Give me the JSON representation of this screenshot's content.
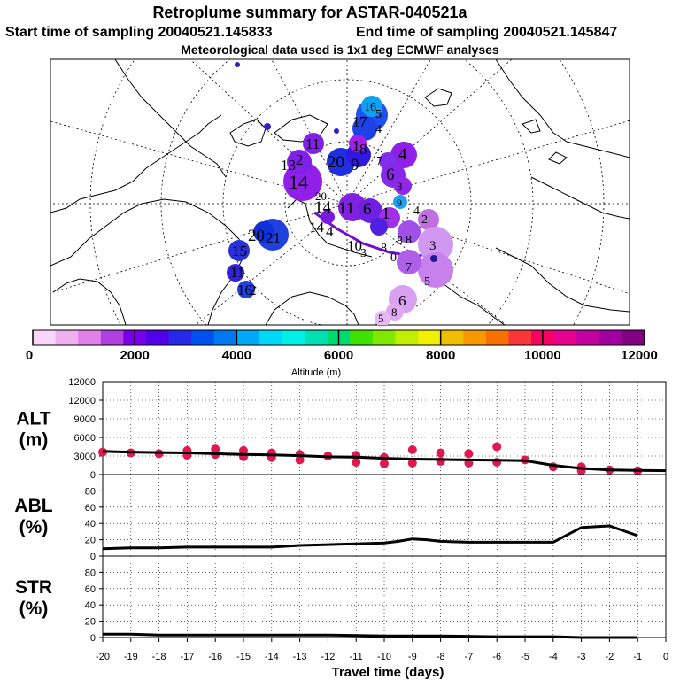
{
  "titles": {
    "line1": "Retroplume summary for ASTAR-040521a",
    "line2a": "Start time of sampling 20040521.145833",
    "line2b": "End time of sampling 20040521.145847",
    "line3": "Meteorological data used is 1x1 deg ECMWF analyses"
  },
  "colorbar": {
    "colors": [
      "#f8d8f8",
      "#f0b0f0",
      "#e080e8",
      "#b040e0",
      "#7800e8",
      "#5000e8",
      "#2828e8",
      "#0050f0",
      "#0078f0",
      "#00a8f8",
      "#00d8f8",
      "#00f0e8",
      "#00e0b0",
      "#00d870",
      "#40e000",
      "#80e800",
      "#c0f000",
      "#f0f000",
      "#f0c000",
      "#f89800",
      "#f87000",
      "#f83838",
      "#f80060",
      "#e80090",
      "#c000a0",
      "#a000a0",
      "#800080"
    ],
    "tick_labels": [
      "0",
      "2000",
      "4000",
      "6000",
      "8000",
      "10000",
      "12000"
    ],
    "label": "Altitude (m)"
  },
  "map": {
    "markers": [
      {
        "lon": 0.42,
        "lat": 0.52,
        "r": 14,
        "c": "#8020e0",
        "label": "10"
      },
      {
        "lon": 0.45,
        "lat": 0.6,
        "r": 13,
        "c": "#6010e8",
        "label": "1"
      }
    ]
  },
  "chart_data": [
    {
      "type": "scatter",
      "panel": "ALT",
      "ylabel": "ALT\n(m)",
      "ylabel_line1": "ALT",
      "ylabel_line2": "(m)",
      "yticks": [
        "0",
        "3000",
        "6000",
        "9000",
        "12000"
      ],
      "ylim": [
        0,
        12000
      ],
      "xlim": [
        -20,
        0
      ],
      "line": {
        "x": [
          -20,
          -19,
          -18,
          -17,
          -16,
          -15,
          -14,
          -13,
          -12,
          -11,
          -10,
          -9,
          -8,
          -7,
          -6,
          -5,
          -4,
          -3,
          -2,
          -1,
          0
        ],
        "y": [
          3000,
          2900,
          2850,
          2800,
          2700,
          2600,
          2550,
          2450,
          2300,
          2250,
          2100,
          2000,
          1950,
          1900,
          1850,
          1800,
          1200,
          800,
          600,
          550,
          500
        ]
      },
      "points": [
        {
          "x": -20,
          "y": 2900
        },
        {
          "x": -19,
          "y": 2800
        },
        {
          "x": -18,
          "y": 2700
        },
        {
          "x": -17,
          "y": 3100
        },
        {
          "x": -17,
          "y": 2500
        },
        {
          "x": -16,
          "y": 3300
        },
        {
          "x": -16,
          "y": 2600
        },
        {
          "x": -15,
          "y": 3100
        },
        {
          "x": -15,
          "y": 2300
        },
        {
          "x": -14,
          "y": 2800
        },
        {
          "x": -14,
          "y": 2200
        },
        {
          "x": -13,
          "y": 2600
        },
        {
          "x": -13,
          "y": 1900
        },
        {
          "x": -12,
          "y": 2400
        },
        {
          "x": -11,
          "y": 2500
        },
        {
          "x": -11,
          "y": 1600
        },
        {
          "x": -10,
          "y": 2200
        },
        {
          "x": -10,
          "y": 1400
        },
        {
          "x": -9,
          "y": 3200
        },
        {
          "x": -9,
          "y": 1500
        },
        {
          "x": -8,
          "y": 2800
        },
        {
          "x": -8,
          "y": 1700
        },
        {
          "x": -7,
          "y": 2700
        },
        {
          "x": -7,
          "y": 1500
        },
        {
          "x": -6,
          "y": 3600
        },
        {
          "x": -6,
          "y": 1600
        },
        {
          "x": -5,
          "y": 1900
        },
        {
          "x": -4,
          "y": 1000
        },
        {
          "x": -3,
          "y": 1000
        },
        {
          "x": -3,
          "y": 500
        },
        {
          "x": -2,
          "y": 600
        },
        {
          "x": -1,
          "y": 500
        }
      ]
    },
    {
      "type": "line",
      "panel": "ABL",
      "ylabel_line1": "ABL",
      "ylabel_line2": "(%)",
      "yticks": [
        "0",
        "20",
        "40",
        "60",
        "80"
      ],
      "ylim": [
        0,
        100
      ],
      "xlim": [
        -20,
        0
      ],
      "x": [
        -20,
        -19,
        -18,
        -17,
        -16,
        -15,
        -14,
        -13,
        -12,
        -11,
        -10,
        -9.5,
        -9,
        -8.5,
        -8,
        -7,
        -6,
        -5,
        -4,
        -3,
        -2.5,
        -2,
        -1
      ],
      "y": [
        9,
        10,
        10,
        11,
        11,
        11,
        11,
        13,
        14,
        15,
        16,
        18,
        21,
        20,
        18,
        17,
        17,
        17,
        17,
        35,
        36,
        37,
        25
      ]
    },
    {
      "type": "line",
      "panel": "STR",
      "ylabel_line1": "STR",
      "ylabel_line2": "(%)",
      "yticks": [
        "0",
        "20",
        "40",
        "60",
        "80"
      ],
      "ylim": [
        0,
        100
      ],
      "xlim": [
        -20,
        0
      ],
      "x": [
        -20,
        -19,
        -18,
        -15,
        -14,
        -12,
        -10,
        -8,
        -6,
        -5,
        -4,
        -3,
        -2,
        -1
      ],
      "y": [
        4,
        4,
        3,
        3,
        3,
        3,
        2,
        2,
        1,
        1,
        1,
        0,
        0,
        0
      ]
    }
  ],
  "xaxis": {
    "tick_labels": [
      "-20",
      "-19",
      "-18",
      "-17",
      "-16",
      "-15",
      "-14",
      "-13",
      "-12",
      "-11",
      "-10",
      "-9",
      "-8",
      "-7",
      "-6",
      "-5",
      "-4",
      "-3",
      "-2",
      "-1",
      "0"
    ],
    "label": "Travel time (days)"
  }
}
